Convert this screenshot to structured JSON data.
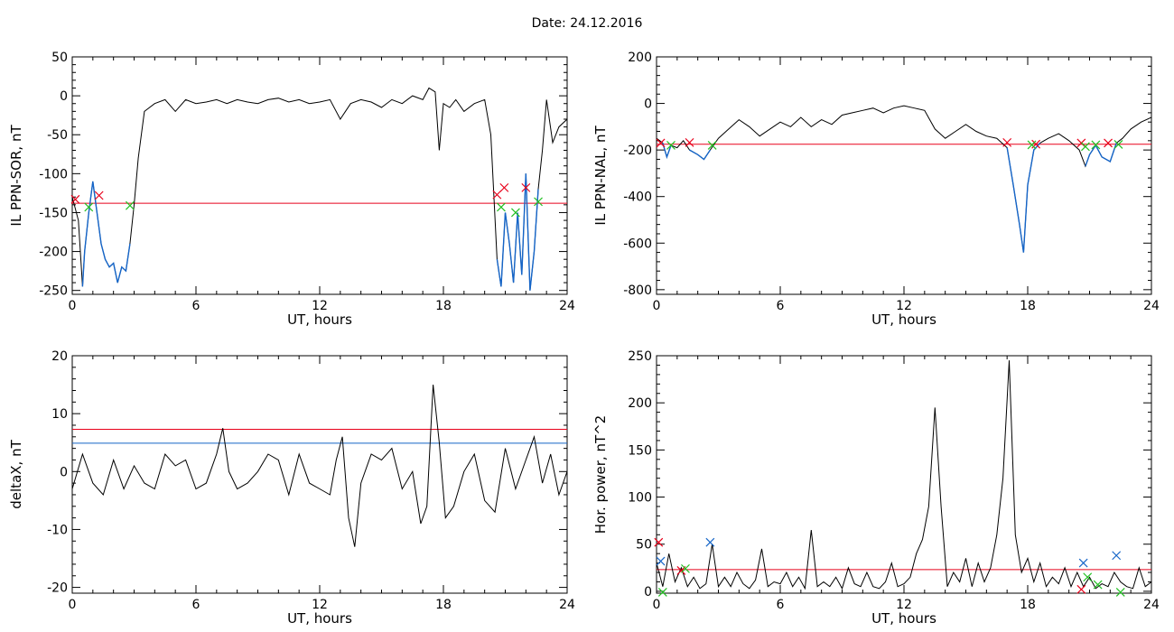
{
  "figure": {
    "title": "Date:  24.12.2016"
  },
  "colors": {
    "data": "#000000",
    "threshold_red": "#e8001a",
    "threshold_blue": "#1565c8",
    "marker_green": "#22c022"
  },
  "chart_data": [
    {
      "type": "line",
      "ylabel": "IL PPN-SOR, nT",
      "xlabel": "UT, hours",
      "xlim": [
        0,
        24
      ],
      "ylim": [
        -255,
        50
      ],
      "xticks": [
        0,
        6,
        12,
        18,
        24
      ],
      "yticks": [
        -250,
        -200,
        -150,
        -100,
        -50,
        0,
        50
      ],
      "x": [
        0,
        0.3,
        0.5,
        0.6,
        0.8,
        1.0,
        1.2,
        1.4,
        1.6,
        1.8,
        2.0,
        2.2,
        2.4,
        2.6,
        2.8,
        3.0,
        3.2,
        3.5,
        4.0,
        4.5,
        5.0,
        5.5,
        6.0,
        6.5,
        7.0,
        7.5,
        8.0,
        8.5,
        9.0,
        9.5,
        10.0,
        10.5,
        11.0,
        11.5,
        12.0,
        12.5,
        13.0,
        13.5,
        14.0,
        14.5,
        15.0,
        15.5,
        16.0,
        16.5,
        17.0,
        17.3,
        17.6,
        17.8,
        18.0,
        18.3,
        18.6,
        19.0,
        19.5,
        20.0,
        20.3,
        20.6,
        20.8,
        21.0,
        21.2,
        21.4,
        21.6,
        21.8,
        22.0,
        22.2,
        22.4,
        22.6,
        22.8,
        23.0,
        23.3,
        23.6,
        24.0
      ],
      "y": [
        -130,
        -160,
        -245,
        -200,
        -150,
        -110,
        -150,
        -190,
        -210,
        -220,
        -215,
        -240,
        -220,
        -225,
        -190,
        -140,
        -80,
        -20,
        -10,
        -5,
        -20,
        -5,
        -10,
        -8,
        -5,
        -10,
        -5,
        -8,
        -10,
        -5,
        -3,
        -8,
        -5,
        -10,
        -8,
        -5,
        -30,
        -10,
        -5,
        -8,
        -15,
        -5,
        -10,
        0,
        -5,
        10,
        5,
        -70,
        -10,
        -15,
        -5,
        -20,
        -10,
        -5,
        -50,
        -210,
        -245,
        -150,
        -190,
        -240,
        -150,
        -230,
        -100,
        -250,
        -200,
        -120,
        -70,
        -5,
        -60,
        -40,
        -30
      ],
      "thresholds": [
        {
          "value": -138,
          "color": "#e8001a"
        }
      ],
      "segments_below": [
        [
          0.4,
          2.9
        ],
        [
          20.6,
          22.6
        ]
      ],
      "markers": [
        {
          "x": 0.15,
          "y": -133,
          "color": "#e8001a",
          "symbol": "x"
        },
        {
          "x": 1.3,
          "y": -128,
          "color": "#e8001a",
          "symbol": "x"
        },
        {
          "x": 20.6,
          "y": -127,
          "color": "#e8001a",
          "symbol": "x"
        },
        {
          "x": 20.95,
          "y": -118,
          "color": "#e8001a",
          "symbol": "x"
        },
        {
          "x": 22.0,
          "y": -118,
          "color": "#e8001a",
          "symbol": "x"
        },
        {
          "x": 0.8,
          "y": -143,
          "color": "#22c022",
          "symbol": "x"
        },
        {
          "x": 2.8,
          "y": -141,
          "color": "#22c022",
          "symbol": "x"
        },
        {
          "x": 20.8,
          "y": -143,
          "color": "#22c022",
          "symbol": "x"
        },
        {
          "x": 21.5,
          "y": -150,
          "color": "#22c022",
          "symbol": "x"
        },
        {
          "x": 22.6,
          "y": -136,
          "color": "#22c022",
          "symbol": "x"
        }
      ]
    },
    {
      "type": "line",
      "ylabel": "IL PPN-NAL, nT",
      "xlabel": "UT, hours",
      "xlim": [
        0,
        24
      ],
      "ylim": [
        -820,
        200
      ],
      "xticks": [
        0,
        6,
        12,
        18,
        24
      ],
      "yticks": [
        -800,
        -600,
        -400,
        -200,
        0,
        200
      ],
      "x": [
        0,
        0.3,
        0.5,
        0.7,
        1.0,
        1.3,
        1.6,
        2.0,
        2.3,
        2.6,
        3.0,
        3.5,
        4.0,
        4.5,
        5.0,
        5.5,
        6.0,
        6.5,
        7.0,
        7.5,
        8.0,
        8.5,
        9.0,
        9.5,
        10.0,
        10.5,
        11.0,
        11.5,
        12.0,
        12.5,
        13.0,
        13.5,
        14.0,
        14.5,
        15.0,
        15.5,
        16.0,
        16.5,
        17.0,
        17.3,
        17.6,
        17.8,
        18.0,
        18.3,
        18.6,
        19.0,
        19.5,
        20.0,
        20.5,
        20.8,
        21.0,
        21.3,
        21.6,
        22.0,
        22.3,
        22.6,
        23.0,
        23.5,
        24.0
      ],
      "y": [
        -150,
        -170,
        -230,
        -180,
        -190,
        -160,
        -200,
        -220,
        -240,
        -200,
        -150,
        -110,
        -70,
        -100,
        -140,
        -110,
        -80,
        -100,
        -60,
        -100,
        -70,
        -90,
        -50,
        -40,
        -30,
        -20,
        -40,
        -20,
        -10,
        -20,
        -30,
        -110,
        -150,
        -120,
        -90,
        -120,
        -140,
        -150,
        -190,
        -350,
        -520,
        -640,
        -350,
        -200,
        -170,
        -150,
        -130,
        -160,
        -200,
        -270,
        -220,
        -180,
        -230,
        -250,
        -170,
        -150,
        -110,
        -80,
        -60
      ],
      "thresholds": [
        {
          "value": -175,
          "color": "#e8001a"
        }
      ],
      "segments_below": [
        [
          0.3,
          0.8
        ],
        [
          1.6,
          2.7
        ],
        [
          17.0,
          18.6
        ],
        [
          20.6,
          22.4
        ]
      ],
      "markers": [
        {
          "x": 0.2,
          "y": -170,
          "color": "#e8001a",
          "symbol": "x"
        },
        {
          "x": 1.6,
          "y": -168,
          "color": "#e8001a",
          "symbol": "x"
        },
        {
          "x": 17.0,
          "y": -168,
          "color": "#e8001a",
          "symbol": "x"
        },
        {
          "x": 18.4,
          "y": -175,
          "color": "#e8001a",
          "symbol": "x"
        },
        {
          "x": 20.6,
          "y": -170,
          "color": "#e8001a",
          "symbol": "x"
        },
        {
          "x": 21.9,
          "y": -170,
          "color": "#e8001a",
          "symbol": "x"
        },
        {
          "x": 0.7,
          "y": -180,
          "color": "#22c022",
          "symbol": "x"
        },
        {
          "x": 2.7,
          "y": -180,
          "color": "#22c022",
          "symbol": "x"
        },
        {
          "x": 18.2,
          "y": -178,
          "color": "#22c022",
          "symbol": "x"
        },
        {
          "x": 20.8,
          "y": -185,
          "color": "#22c022",
          "symbol": "x"
        },
        {
          "x": 21.3,
          "y": -178,
          "color": "#22c022",
          "symbol": "x"
        },
        {
          "x": 22.4,
          "y": -176,
          "color": "#22c022",
          "symbol": "x"
        }
      ]
    },
    {
      "type": "line",
      "ylabel": "deltaX, nT",
      "xlabel": "UT, hours",
      "xlim": [
        0,
        24
      ],
      "ylim": [
        -21,
        20
      ],
      "xticks": [
        0,
        6,
        12,
        18,
        24
      ],
      "yticks": [
        -20,
        -10,
        0,
        10,
        20
      ],
      "x": [
        0,
        0.5,
        1.0,
        1.5,
        2.0,
        2.5,
        3.0,
        3.5,
        4.0,
        4.5,
        5.0,
        5.5,
        6.0,
        6.5,
        7.0,
        7.3,
        7.6,
        8.0,
        8.5,
        9.0,
        9.5,
        10.0,
        10.5,
        11.0,
        11.5,
        12.0,
        12.5,
        12.8,
        13.1,
        13.4,
        13.7,
        14.0,
        14.5,
        15.0,
        15.5,
        16.0,
        16.5,
        16.9,
        17.2,
        17.5,
        17.8,
        18.1,
        18.5,
        19.0,
        19.5,
        20.0,
        20.5,
        21.0,
        21.5,
        22.0,
        22.4,
        22.8,
        23.2,
        23.6,
        24.0
      ],
      "y": [
        -3,
        3,
        -2,
        -4,
        2,
        -3,
        1,
        -2,
        -3,
        3,
        1,
        2,
        -3,
        -2,
        3,
        7.5,
        0,
        -3,
        -2,
        0,
        3,
        2,
        -4,
        3,
        -2,
        -3,
        -4,
        2,
        6,
        -8,
        -13,
        -2,
        3,
        2,
        4,
        -3,
        0,
        -9,
        -6,
        15,
        5,
        -8,
        -6,
        0,
        3,
        -5,
        -7,
        4,
        -3,
        2,
        6,
        -2,
        3,
        -4,
        0
      ],
      "thresholds": [
        {
          "value": 7.3,
          "color": "#e8001a"
        },
        {
          "value": 4.9,
          "color": "#1565c8"
        }
      ],
      "segments_below": [],
      "markers": []
    },
    {
      "type": "line",
      "ylabel": "Hor. power, nT^2",
      "xlabel": "UT, hours",
      "xlim": [
        0,
        24
      ],
      "ylim": [
        -2,
        250
      ],
      "xticks": [
        0,
        6,
        12,
        18,
        24
      ],
      "yticks": [
        0,
        50,
        100,
        150,
        200,
        250
      ],
      "x": [
        0,
        0.3,
        0.6,
        0.9,
        1.2,
        1.5,
        1.8,
        2.1,
        2.4,
        2.7,
        3.0,
        3.3,
        3.6,
        3.9,
        4.2,
        4.5,
        4.8,
        5.1,
        5.4,
        5.7,
        6.0,
        6.3,
        6.6,
        6.9,
        7.2,
        7.5,
        7.8,
        8.1,
        8.4,
        8.7,
        9.0,
        9.3,
        9.6,
        9.9,
        10.2,
        10.5,
        10.8,
        11.1,
        11.4,
        11.7,
        12.0,
        12.3,
        12.6,
        12.9,
        13.2,
        13.5,
        13.8,
        14.1,
        14.4,
        14.7,
        15.0,
        15.3,
        15.6,
        15.9,
        16.2,
        16.5,
        16.8,
        17.1,
        17.4,
        17.7,
        18.0,
        18.3,
        18.6,
        18.9,
        19.2,
        19.5,
        19.8,
        20.1,
        20.4,
        20.7,
        21.0,
        21.3,
        21.6,
        21.9,
        22.2,
        22.5,
        22.8,
        23.1,
        23.4,
        23.7,
        24.0
      ],
      "y": [
        30,
        5,
        40,
        10,
        25,
        5,
        15,
        3,
        8,
        50,
        5,
        15,
        5,
        20,
        8,
        3,
        12,
        45,
        5,
        10,
        8,
        20,
        5,
        15,
        3,
        65,
        5,
        10,
        5,
        15,
        3,
        25,
        8,
        5,
        20,
        5,
        3,
        10,
        30,
        5,
        8,
        15,
        40,
        55,
        90,
        195,
        90,
        5,
        20,
        10,
        35,
        5,
        30,
        10,
        25,
        60,
        120,
        245,
        60,
        20,
        35,
        10,
        30,
        5,
        15,
        8,
        25,
        5,
        20,
        5,
        15,
        3,
        8,
        5,
        20,
        10,
        5,
        3,
        25,
        5,
        10
      ],
      "thresholds": [
        {
          "value": 23,
          "color": "#e8001a"
        }
      ],
      "segments_below": [],
      "markers": [
        {
          "x": 0.1,
          "y": 52,
          "color": "#e8001a",
          "symbol": "x"
        },
        {
          "x": 1.2,
          "y": 22,
          "color": "#e8001a",
          "symbol": "x"
        },
        {
          "x": 20.6,
          "y": 2,
          "color": "#e8001a",
          "symbol": "x"
        },
        {
          "x": 0.2,
          "y": 32,
          "color": "#1565c8",
          "symbol": "x"
        },
        {
          "x": 2.6,
          "y": 52,
          "color": "#1565c8",
          "symbol": "x"
        },
        {
          "x": 20.7,
          "y": 30,
          "color": "#1565c8",
          "symbol": "x"
        },
        {
          "x": 22.3,
          "y": 38,
          "color": "#1565c8",
          "symbol": "x"
        },
        {
          "x": 0.3,
          "y": -1,
          "color": "#22c022",
          "symbol": "x"
        },
        {
          "x": 1.4,
          "y": 24,
          "color": "#22c022",
          "symbol": "x"
        },
        {
          "x": 20.9,
          "y": 15,
          "color": "#22c022",
          "symbol": "x"
        },
        {
          "x": 21.4,
          "y": 7,
          "color": "#22c022",
          "symbol": "x"
        },
        {
          "x": 22.5,
          "y": -1,
          "color": "#22c022",
          "symbol": "x"
        }
      ]
    }
  ]
}
